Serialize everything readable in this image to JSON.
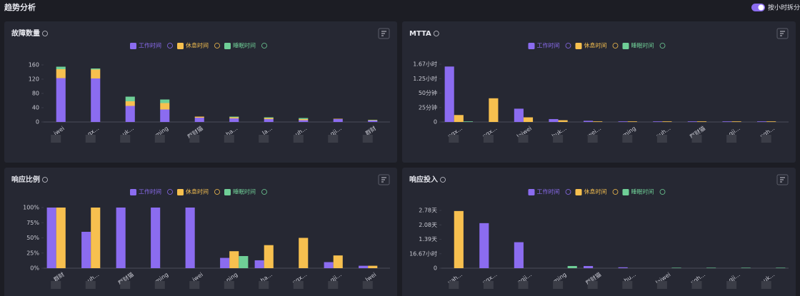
{
  "header": {
    "title": "趋势分析",
    "toggle": "按小时拆分"
  },
  "chart_data": [
    {
      "type": "bar",
      "stacked": true,
      "title": "故障数量",
      "categories": [
        "iwei",
        "gx...",
        "uk...",
        "ming",
        "群财猫",
        "ha...",
        "la...",
        "uh...",
        "gji...",
        "群财"
      ],
      "series": [
        {
          "name": "工作时间",
          "color": "#8b6cf0",
          "values": [
            123,
            122,
            45,
            35,
            12,
            10,
            8,
            5,
            8,
            4
          ]
        },
        {
          "name": "休息时间",
          "color": "#f7c04f",
          "values": [
            25,
            25,
            13,
            18,
            3,
            3,
            3,
            3,
            1,
            1
          ]
        },
        {
          "name": "睡眠时间",
          "color": "#6fcf97",
          "values": [
            7,
            3,
            13,
            10,
            0,
            2,
            2,
            3,
            0,
            1
          ]
        }
      ],
      "ylim": [
        0,
        170
      ],
      "yticks": [
        0,
        40,
        80,
        120,
        160
      ],
      "grid": false
    },
    {
      "type": "bar",
      "stacked": false,
      "title": "MTTA",
      "categories": [
        "ngx...",
        "ngx...",
        "laiwei",
        "huk...",
        "wei...",
        "ming",
        "auh...",
        "群财猫",
        "gji...",
        "ngh..."
      ],
      "series": [
        {
          "name": "工作时间",
          "color": "#8b6cf0",
          "values": [
            96,
            0,
            23,
            5,
            2,
            1,
            1,
            1,
            1,
            1
          ]
        },
        {
          "name": "休息时间",
          "color": "#f7c04f",
          "values": [
            12,
            41,
            8,
            3,
            1,
            1,
            1,
            1,
            1,
            1
          ]
        },
        {
          "name": "睡眠时间",
          "color": "#6fcf97",
          "values": [
            1,
            0,
            0,
            0,
            0,
            0,
            0,
            0,
            0,
            0
          ]
        }
      ],
      "ylim": [
        0,
        105
      ],
      "yticks": [
        0,
        {
          "value": 25,
          "label": "25分钟"
        },
        {
          "value": 50,
          "label": "50分钟"
        },
        {
          "value": 75,
          "label": "1.25小时"
        },
        {
          "value": 100,
          "label": "1.67小时"
        }
      ],
      "grid": false
    },
    {
      "type": "bar",
      "stacked": false,
      "title": "响应比例",
      "categories": [
        "群财",
        "uh...",
        "群财猫",
        "ming",
        "iwei",
        "ning",
        "ha...",
        "ngx...",
        "gji...",
        "lwei"
      ],
      "series": [
        {
          "name": "工作时间",
          "color": "#8b6cf0",
          "values": [
            100,
            60,
            100,
            100,
            100,
            17,
            13,
            0,
            10,
            4
          ]
        },
        {
          "name": "休息时间",
          "color": "#f7c04f",
          "values": [
            100,
            100,
            0,
            0,
            0,
            28,
            38,
            50,
            21,
            4
          ]
        },
        {
          "name": "睡眠时间",
          "color": "#6fcf97",
          "values": [
            0,
            0,
            0,
            0,
            0,
            20,
            0,
            0,
            0,
            0
          ]
        }
      ],
      "ylim": [
        0,
        100
      ],
      "yticks": [
        {
          "value": 0,
          "label": "0%"
        },
        {
          "value": 25,
          "label": "25%"
        },
        {
          "value": 50,
          "label": "50%"
        },
        {
          "value": 75,
          "label": "75%"
        },
        {
          "value": 100,
          "label": "100%"
        }
      ],
      "grid": false
    },
    {
      "type": "bar",
      "stacked": false,
      "title": "响应投入",
      "categories": [
        "uah...",
        "ngx...",
        "ngji...",
        "ming",
        "群财猫",
        "hu...",
        "laiwei",
        "ngh...",
        "gji...",
        "uk..."
      ],
      "series": [
        {
          "name": "工作时间",
          "color": "#8b6cf0",
          "values": [
            0,
            52,
            30,
            0,
            2.5,
            1,
            0,
            0,
            0,
            0
          ]
        },
        {
          "name": "休息时间",
          "color": "#f7c04f",
          "values": [
            66,
            0,
            0,
            0,
            0,
            0,
            0,
            0,
            0,
            0
          ]
        },
        {
          "name": "睡眠时间",
          "color": "#6fcf97",
          "values": [
            0,
            0,
            0,
            2.5,
            0,
            0,
            0.5,
            0.5,
            0.5,
            0.5
          ]
        }
      ],
      "ylim": [
        0,
        70
      ],
      "yticks": [
        0,
        {
          "value": 16.67,
          "label": "16.67小时"
        },
        {
          "value": 33.33,
          "label": "1.39天"
        },
        {
          "value": 50,
          "label": "2.08天"
        },
        {
          "value": 66.67,
          "label": "2.78天"
        }
      ],
      "grid": false
    }
  ]
}
